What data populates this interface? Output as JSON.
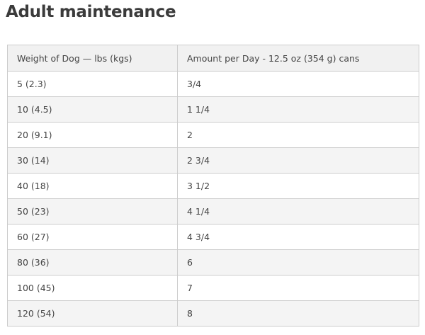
{
  "title": "Adult maintenance",
  "table": {
    "headers": [
      "Weight of Dog — lbs (kgs)",
      "Amount per Day - 12.5 oz (354 g) cans"
    ],
    "rows": [
      [
        "5 (2.3)",
        "3/4"
      ],
      [
        "10 (4.5)",
        "1 1/4"
      ],
      [
        "20 (9.1)",
        "2"
      ],
      [
        "30 (14)",
        "2 3/4"
      ],
      [
        "40 (18)",
        "3 1/2"
      ],
      [
        "50 (23)",
        "4 1/4"
      ],
      [
        "60 (27)",
        "4 3/4"
      ],
      [
        "80 (36)",
        "6"
      ],
      [
        "100 (45)",
        "7"
      ],
      [
        "120 (54)",
        "8"
      ]
    ]
  }
}
